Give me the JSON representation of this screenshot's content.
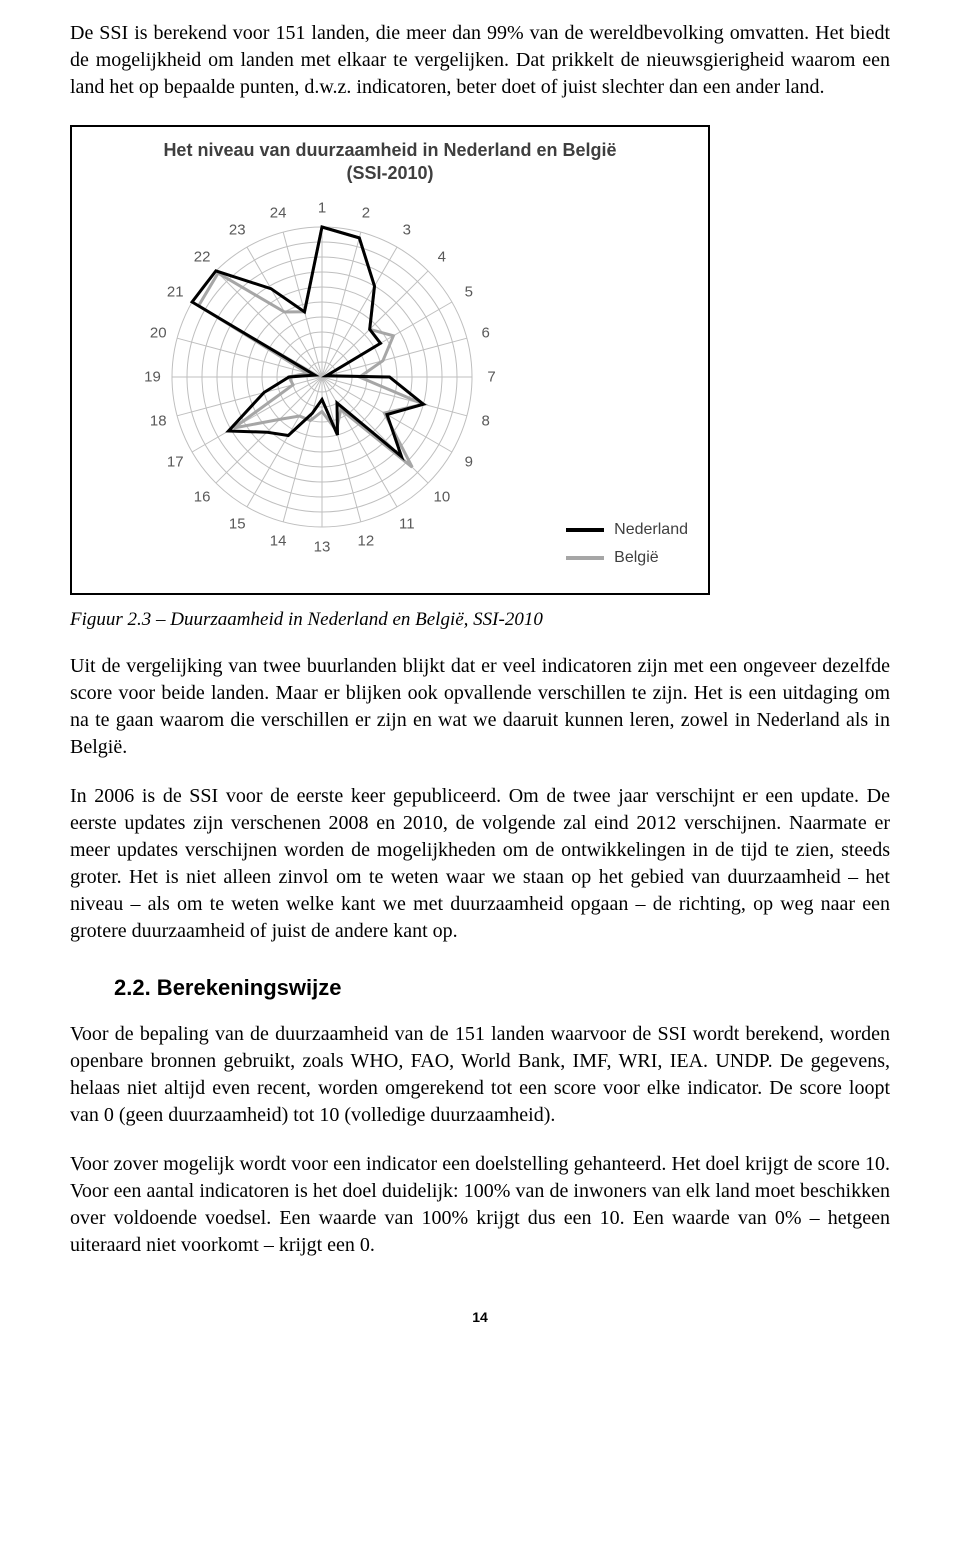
{
  "text": {
    "p1": "De SSI is berekend voor 151 landen, die meer dan 99% van de wereldbevolking omvatten. Het biedt de mogelijkheid om landen met elkaar te vergelijken. Dat prikkelt de nieuwsgierigheid waarom een land het op bepaalde punten, d.w.z. indicatoren, beter doet of juist slechter dan een ander land.",
    "caption": "Figuur 2.3 – Duurzaamheid in Nederland en België, SSI-2010",
    "p2": "Uit de vergelijking van twee buurlanden blijkt dat er veel indicatoren zijn met een ongeveer dezelfde score voor beide landen. Maar er blijken ook opvallende verschillen te zijn. Het is een uitdaging om na te gaan waarom die verschillen er zijn en wat we daaruit kunnen leren, zowel in Nederland als in België.",
    "p3": "In 2006 is de SSI voor de eerste keer gepubliceerd. Om de twee jaar verschijnt er een update. De eerste updates zijn verschenen 2008 en 2010, de volgende zal eind 2012 verschijnen. Naarmate er meer updates verschijnen worden de mogelijkheden om de ontwikkelingen in de tijd te zien, steeds groter. Het is niet alleen zinvol om te weten waar we staan op het gebied van duurzaamheid – het niveau – als om te weten welke kant we met duurzaamheid opgaan – de richting, op weg naar een grotere duurzaamheid of juist de andere kant op.",
    "section": "2.2. Berekeningswijze",
    "p4": "Voor de bepaling van de duurzaamheid van de 151 landen waarvoor de SSI wordt berekend, worden openbare bronnen gebruikt, zoals WHO, FAO, World Bank, IMF, WRI, IEA. UNDP. De gegevens, helaas niet altijd even recent, worden omgerekend tot een score voor elke indicator. De score loopt van 0 (geen duurzaamheid) tot 10 (volledige duurzaamheid).",
    "p5": "Voor zover mogelijk wordt voor een indicator een doelstelling gehanteerd. Het doel krijgt de score 10. Voor een aantal indicatoren is het doel duidelijk: 100% van de inwoners van elk land moet beschikken over voldoende voedsel. Een waarde van 100% krijgt dus een 10. Een waarde van 0% – hetgeen uiteraard niet voorkomt – krijgt een 0.",
    "pagenum": "14"
  },
  "chart": {
    "type": "radar",
    "title_line1": "Het niveau van duurzaamheid in Nederland en België",
    "title_line2": "(SSI-2010)",
    "title_fontsize": 18,
    "title_color": "#3f3f3f",
    "n_axes": 24,
    "axis_labels": [
      "1",
      "2",
      "3",
      "4",
      "5",
      "6",
      "7",
      "8",
      "9",
      "10",
      "11",
      "12",
      "13",
      "14",
      "15",
      "16",
      "17",
      "18",
      "19",
      "20",
      "21",
      "22",
      "23",
      "24"
    ],
    "axis_label_color": "#595959",
    "axis_label_fontsize": 15,
    "rings": 10,
    "max_value": 10,
    "grid_color": "#bfbfbf",
    "grid_width": 1,
    "background_color": "#ffffff",
    "line_width": 3,
    "legend": [
      {
        "label": "Nederland",
        "color": "#000000"
      },
      {
        "label": "België",
        "color": "#a6a6a6"
      }
    ],
    "series": {
      "Nederland": [
        10.0,
        9.6,
        7.0,
        4.5,
        4.5,
        0.3,
        4.5,
        7.0,
        5.0,
        7.5,
        2.0,
        4.0,
        1.5,
        2.5,
        4.5,
        5.2,
        7.2,
        4.0,
        2.2,
        0.5,
        10.0,
        10.0,
        6.8,
        4.5
      ],
      "Belgie": [
        10.0,
        9.6,
        7.0,
        4.5,
        5.5,
        4.2,
        2.5,
        7.0,
        4.8,
        8.5,
        2.5,
        3.7,
        2.3,
        3.0,
        3.0,
        4.0,
        6.8,
        2.0,
        2.2,
        1.0,
        9.5,
        9.8,
        5.0,
        4.5
      ]
    }
  }
}
